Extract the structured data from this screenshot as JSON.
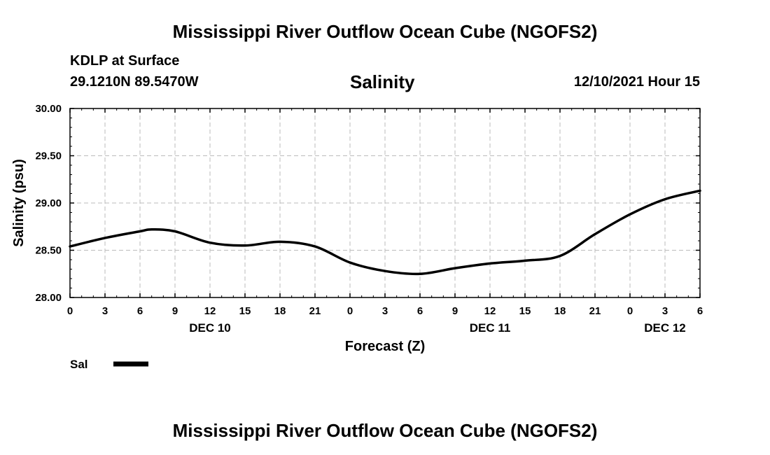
{
  "page": {
    "title_top": "Mississippi River Outflow Ocean Cube (NGOFS2)",
    "title_bottom": "Mississippi River Outflow Ocean Cube (NGOFS2)",
    "station": "KDLP at Surface",
    "coords": "29.1210N  89.5470W",
    "valid_time": "12/10/2021 Hour 15"
  },
  "chart_data": {
    "type": "line",
    "title": "Salinity",
    "xlabel": "Forecast (Z)",
    "ylabel": "Salinity (psu)",
    "ylim": [
      28.0,
      30.0
    ],
    "yticks": [
      "28.00",
      "28.50",
      "29.00",
      "29.50",
      "30.00"
    ],
    "xlim": [
      0,
      54
    ],
    "xtick_labels": [
      "0",
      "3",
      "6",
      "9",
      "12",
      "15",
      "18",
      "21",
      "0",
      "3",
      "6",
      "9",
      "12",
      "15",
      "18",
      "21",
      "0",
      "3",
      "6"
    ],
    "day_labels": [
      {
        "label": "DEC 10",
        "hour": 12
      },
      {
        "label": "DEC 11",
        "hour": 36
      },
      {
        "label": "DEC 12",
        "hour": 51
      }
    ],
    "grid": true,
    "legend": "bottom-left",
    "series": [
      {
        "name": "Sal",
        "color": "#000000",
        "x": [
          0,
          3,
          6,
          7,
          9,
          12,
          15,
          18,
          21,
          24,
          27,
          30,
          33,
          36,
          39,
          42,
          45,
          48,
          51,
          54
        ],
        "values": [
          28.54,
          28.63,
          28.7,
          28.72,
          28.7,
          28.58,
          28.55,
          28.59,
          28.54,
          28.37,
          28.28,
          28.25,
          28.31,
          28.36,
          28.39,
          28.44,
          28.67,
          28.88,
          29.04,
          29.13
        ]
      }
    ]
  }
}
